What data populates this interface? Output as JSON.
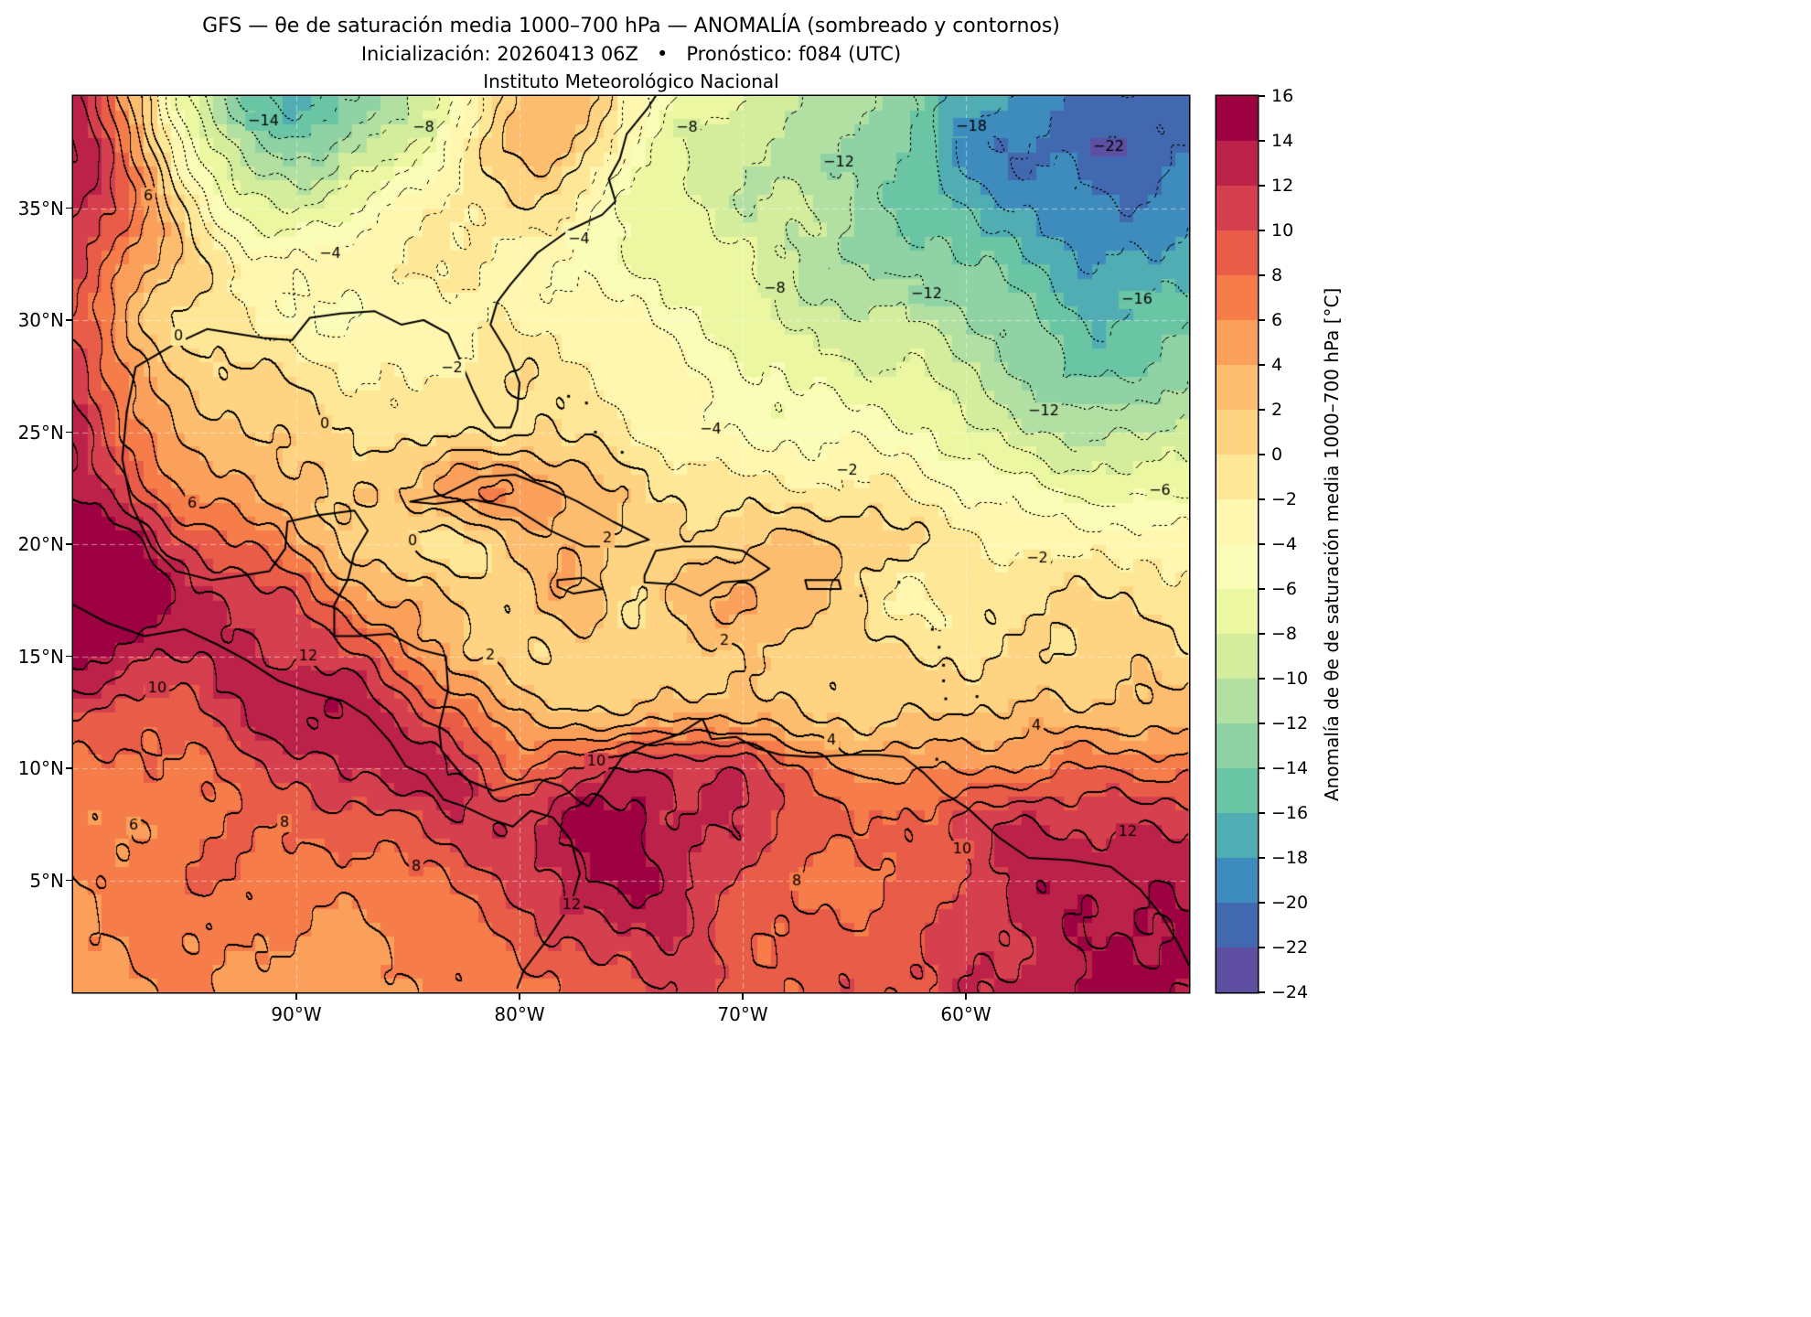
{
  "figure": {
    "title_line1": "GFS — θe de saturación media 1000–700 hPa — ANOMALÍA (sombreado y contornos)",
    "title_line2": "Inicialización: 20260413 06Z   •   Pronóstico: f084 (UTC)",
    "title_line3": "Instituto Meteorológico Nacional",
    "background": "#ffffff"
  },
  "axes": {
    "lon_min": -100,
    "lon_max": -50,
    "lat_min": 0,
    "lat_max": 40,
    "x_ticks": [
      {
        "lon": -90,
        "label": "90°W"
      },
      {
        "lon": -80,
        "label": "80°W"
      },
      {
        "lon": -70,
        "label": "70°W"
      },
      {
        "lon": -60,
        "label": "60°W"
      }
    ],
    "y_ticks": [
      {
        "lat": 35,
        "label": "35°N"
      },
      {
        "lat": 30,
        "label": "30°N"
      },
      {
        "lat": 25,
        "label": "25°N"
      },
      {
        "lat": 20,
        "label": "20°N"
      },
      {
        "lat": 15,
        "label": "15°N"
      },
      {
        "lat": 10,
        "label": "10°N"
      },
      {
        "lat": 5,
        "label": "5°N"
      }
    ],
    "grid_lons": [
      -90,
      -80,
      -70,
      -60
    ],
    "grid_lats": [
      5,
      10,
      15,
      20,
      25,
      30,
      35
    ]
  },
  "colorbar": {
    "label": "Anomalía de θe de saturación media 1000–700 hPa [°C]",
    "tick_labels": [
      "16",
      "14",
      "12",
      "10",
      "8",
      "6",
      "4",
      "2",
      "0",
      "−2",
      "−4",
      "−6",
      "−8",
      "−10",
      "−12",
      "−14",
      "−16",
      "−18",
      "−20",
      "−22",
      "−24"
    ],
    "level_min": -24,
    "level_max": 16,
    "level_step": 2,
    "colors_ascending": [
      "#5e4fa2",
      "#4268b0",
      "#3e8bbd",
      "#4fadb3",
      "#69c5a4",
      "#8fd2a4",
      "#b2dfa2",
      "#d3ed9c",
      "#ecf7a1",
      "#fafdb7",
      "#fff7b0",
      "#fee797",
      "#fed482",
      "#fdbd6e",
      "#fba05b",
      "#f67c4a",
      "#e95c47",
      "#d6404e",
      "#bc2249",
      "#9e0142"
    ]
  },
  "chart_data": {
    "type": "heatmap",
    "subtype": "filled-contour-anomaly-map",
    "units": "°C",
    "contour_interval": 2,
    "positive_contours": "solid",
    "negative_contours": "dotted",
    "contour_label_levels": [
      -22,
      -20,
      -18,
      -16,
      -14,
      -12,
      -10,
      -8,
      -6,
      -4,
      -2,
      0,
      2,
      4,
      6,
      8,
      10,
      12
    ],
    "x_lons": [
      -100,
      -97.5,
      -95,
      -92.5,
      -90,
      -87.5,
      -85,
      -82.5,
      -80,
      -77.5,
      -75,
      -72.5,
      -70,
      -67.5,
      -65,
      -62.5,
      -60,
      -57.5,
      -55,
      -52.5,
      -50
    ],
    "y_lats": [
      40,
      37.5,
      35,
      32.5,
      30,
      27.5,
      25,
      22.5,
      20,
      17.5,
      15,
      12.5,
      10,
      7.5,
      5,
      2.5,
      0
    ],
    "values_grid": [
      [
        12,
        4,
        -8,
        -14,
        -16,
        -14,
        -10,
        -6,
        2,
        3,
        -2,
        -6,
        -8,
        -10,
        -12,
        -14,
        -16,
        -18,
        -20,
        -21,
        -22
      ],
      [
        14,
        6,
        -4,
        -10,
        -12,
        -10,
        -8,
        -2,
        2,
        2,
        -4,
        -8,
        -10,
        -12,
        -12,
        -14,
        -18,
        -20,
        -21,
        -22,
        -20
      ],
      [
        12,
        8,
        0,
        -6,
        -8,
        -6,
        -4,
        -2,
        0,
        -2,
        -6,
        -8,
        -10,
        -10,
        -12,
        -14,
        -16,
        -18,
        -20,
        -20,
        -18
      ],
      [
        10,
        6,
        2,
        -2,
        -4,
        -4,
        -2,
        -2,
        -2,
        -4,
        -6,
        -8,
        -8,
        -10,
        -12,
        -12,
        -14,
        -16,
        -18,
        -18,
        -16
      ],
      [
        10,
        4,
        0,
        -2,
        -4,
        -5,
        -3,
        -2,
        -2,
        -3,
        -4,
        -6,
        -7,
        -8,
        -9,
        -10,
        -12,
        -14,
        -16,
        -15,
        -14
      ],
      [
        12,
        6,
        2,
        0,
        -1,
        -2,
        -2,
        -1,
        0,
        -2,
        -3,
        -4,
        -5,
        -6,
        -7,
        -8,
        -10,
        -12,
        -14,
        -13,
        -12
      ],
      [
        14,
        8,
        3,
        2,
        1,
        0,
        0,
        0,
        0,
        -1,
        -2,
        -3,
        -4,
        -4,
        -5,
        -6,
        -8,
        -9,
        -10,
        -10,
        -9
      ],
      [
        14,
        10,
        5,
        4,
        3,
        2,
        3,
        5,
        5,
        3,
        1,
        0,
        -1,
        -2,
        -2,
        -3,
        -4,
        -5,
        -6,
        -7,
        -7
      ],
      [
        16,
        14,
        10,
        8,
        6,
        2,
        0,
        -1,
        2,
        4,
        2,
        1,
        2,
        2,
        1,
        0,
        -1,
        -2,
        -3,
        -3,
        -4
      ],
      [
        16,
        15,
        13,
        12,
        10,
        6,
        3,
        1,
        1,
        4,
        1,
        3,
        4,
        3,
        0,
        -2,
        -1,
        0,
        0,
        -1,
        -1
      ],
      [
        14,
        13,
        12,
        13,
        12,
        10,
        6,
        2,
        1,
        1,
        1,
        1,
        1,
        1,
        1,
        1,
        0,
        0,
        0,
        1,
        1
      ],
      [
        10,
        9,
        10,
        12,
        14,
        13,
        10,
        8,
        4,
        3,
        2,
        3,
        3,
        2,
        2,
        2,
        2,
        2,
        2,
        3,
        3
      ],
      [
        8,
        8,
        8,
        9,
        10,
        12,
        13,
        12,
        8,
        10,
        12,
        10,
        12,
        8,
        6,
        6,
        5,
        6,
        8,
        8,
        8
      ],
      [
        7,
        7,
        7,
        8,
        8,
        9,
        10,
        12,
        12,
        14,
        14,
        12,
        12,
        10,
        8,
        8,
        10,
        12,
        12,
        12,
        12
      ],
      [
        6,
        7,
        8,
        7,
        7,
        7,
        8,
        9,
        10,
        13,
        14,
        13,
        10,
        8,
        7,
        8,
        10,
        13,
        14,
        14,
        13
      ],
      [
        6,
        6,
        6,
        6,
        6,
        6,
        7,
        7,
        8,
        10,
        12,
        12,
        9,
        8,
        8,
        9,
        11,
        13,
        14,
        14,
        14
      ],
      [
        5,
        5,
        6,
        6,
        5,
        6,
        6,
        7,
        7,
        8,
        10,
        11,
        9,
        8,
        9,
        10,
        12,
        13,
        14,
        14,
        14
      ]
    ],
    "geo": {
      "coastlines": [
        {
          "name": "us-gulf-atlantic",
          "pts": [
            [
              -97.6,
              25.9
            ],
            [
              -97.2,
              27.9
            ],
            [
              -95.5,
              28.9
            ],
            [
              -94,
              29.6
            ],
            [
              -91.5,
              29.2
            ],
            [
              -90.2,
              29.1
            ],
            [
              -89.4,
              30.1
            ],
            [
              -88,
              30.3
            ],
            [
              -86.5,
              30.4
            ],
            [
              -85.3,
              29.8
            ],
            [
              -84.3,
              30
            ],
            [
              -83.2,
              29.4
            ],
            [
              -82.7,
              28.3
            ],
            [
              -82.1,
              26.9
            ],
            [
              -81.6,
              25.9
            ],
            [
              -81.1,
              25.2
            ],
            [
              -80.4,
              25.2
            ],
            [
              -80.1,
              26
            ],
            [
              -80,
              27.2
            ],
            [
              -80.5,
              28.5
            ],
            [
              -81.3,
              29.8
            ],
            [
              -81,
              30.8
            ],
            [
              -80.4,
              31.6
            ],
            [
              -79.2,
              33
            ],
            [
              -77.8,
              34
            ],
            [
              -76.3,
              34.7
            ],
            [
              -75.7,
              35.3
            ],
            [
              -76,
              36.3
            ],
            [
              -75.5,
              37.2
            ],
            [
              -75.2,
              38.3
            ],
            [
              -74.3,
              39.4
            ],
            [
              -73.9,
              40
            ]
          ]
        },
        {
          "name": "mexico-central-america-caribbean",
          "pts": [
            [
              -97.6,
              25.9
            ],
            [
              -97.8,
              23.8
            ],
            [
              -97.4,
              21.8
            ],
            [
              -96.5,
              19.9
            ],
            [
              -95.4,
              18.8
            ],
            [
              -93.8,
              18.4
            ],
            [
              -92.4,
              18.6
            ],
            [
              -91.2,
              18.8
            ],
            [
              -90.5,
              19.8
            ],
            [
              -90.4,
              21
            ],
            [
              -89,
              21.3
            ],
            [
              -87.4,
              21.5
            ],
            [
              -86.8,
              20.6
            ],
            [
              -87.4,
              19.6
            ],
            [
              -87.7,
              18.4
            ],
            [
              -88.3,
              17.3
            ],
            [
              -88.3,
              15.9
            ],
            [
              -87.2,
              15.9
            ],
            [
              -85.8,
              16
            ],
            [
              -84.5,
              15.3
            ],
            [
              -83.3,
              15
            ],
            [
              -83.2,
              13.5
            ],
            [
              -83.6,
              11.8
            ],
            [
              -83.5,
              10.8
            ],
            [
              -82.4,
              9.5
            ],
            [
              -81.2,
              9
            ],
            [
              -80.1,
              9.3
            ],
            [
              -79.1,
              9.5
            ],
            [
              -78.1,
              9.2
            ],
            [
              -77.3,
              8.5
            ],
            [
              -76.9,
              8.3
            ],
            [
              -76.2,
              9.3
            ],
            [
              -75.4,
              10.5
            ],
            [
              -74.4,
              11
            ],
            [
              -72.9,
              11.5
            ],
            [
              -71.8,
              12.2
            ],
            [
              -71.4,
              11.3
            ],
            [
              -70.3,
              11.4
            ],
            [
              -69.4,
              10.9
            ],
            [
              -68.3,
              10.6
            ],
            [
              -66.8,
              10.5
            ],
            [
              -65.2,
              10.6
            ],
            [
              -63.9,
              10.6
            ],
            [
              -62.8,
              10.5
            ],
            [
              -61.9,
              9.8
            ],
            [
              -61,
              8.9
            ],
            [
              -59.9,
              8.2
            ],
            [
              -58.5,
              6.9
            ],
            [
              -57.2,
              6
            ],
            [
              -55.3,
              5.9
            ],
            [
              -53.5,
              5.6
            ],
            [
              -52.2,
              4.6
            ],
            [
              -51.2,
              3.4
            ],
            [
              -50.5,
              2.2
            ],
            [
              -50,
              1.2
            ]
          ]
        },
        {
          "name": "pacific-coast",
          "pts": [
            [
              -100,
              17.3
            ],
            [
              -98.5,
              16.5
            ],
            [
              -96.8,
              15.9
            ],
            [
              -95,
              16.2
            ],
            [
              -93.5,
              15.5
            ],
            [
              -92.2,
              14.8
            ],
            [
              -90.8,
              13.9
            ],
            [
              -89.4,
              13.4
            ],
            [
              -87.9,
              13
            ],
            [
              -86.8,
              12.3
            ],
            [
              -85.8,
              11.2
            ],
            [
              -85.1,
              10.1
            ],
            [
              -84.2,
              9.7
            ],
            [
              -83.4,
              8.6
            ],
            [
              -82.5,
              8.3
            ],
            [
              -81.2,
              7.7
            ],
            [
              -80.3,
              7.4
            ],
            [
              -79.5,
              8.1
            ],
            [
              -78.5,
              7.8
            ],
            [
              -77.7,
              6.8
            ],
            [
              -77.3,
              5.3
            ],
            [
              -77.7,
              3.9
            ],
            [
              -78.8,
              2.3
            ],
            [
              -79.8,
              1
            ],
            [
              -80.1,
              0.2
            ]
          ]
        },
        {
          "name": "cuba",
          "pts": [
            [
              -84.9,
              21.9
            ],
            [
              -83.4,
              22.2
            ],
            [
              -81.8,
              23
            ],
            [
              -80.2,
              23.1
            ],
            [
              -78.9,
              22.6
            ],
            [
              -77.4,
              21.9
            ],
            [
              -75.8,
              21
            ],
            [
              -74.2,
              20.2
            ],
            [
              -75.2,
              19.9
            ],
            [
              -77.1,
              19.9
            ],
            [
              -78.6,
              20.6
            ],
            [
              -80.2,
              21.6
            ],
            [
              -82.1,
              22
            ],
            [
              -83.8,
              21.8
            ],
            [
              -84.9,
              21.9
            ]
          ]
        },
        {
          "name": "hispaniola",
          "pts": [
            [
              -74.4,
              18.6
            ],
            [
              -73.9,
              19.7
            ],
            [
              -72.7,
              19.9
            ],
            [
              -71.3,
              19.9
            ],
            [
              -70,
              19.7
            ],
            [
              -68.8,
              18.9
            ],
            [
              -69.6,
              18.4
            ],
            [
              -70.9,
              18.3
            ],
            [
              -71.9,
              17.7
            ],
            [
              -73,
              18.2
            ],
            [
              -74.4,
              18.3
            ],
            [
              -74.4,
              18.6
            ]
          ]
        },
        {
          "name": "jamaica",
          "pts": [
            [
              -78.3,
              18.4
            ],
            [
              -77.1,
              18.5
            ],
            [
              -76.3,
              18
            ],
            [
              -77.6,
              17.8
            ],
            [
              -78.3,
              18.1
            ],
            [
              -78.3,
              18.4
            ]
          ]
        },
        {
          "name": "puerto-rico",
          "pts": [
            [
              -67.2,
              18.4
            ],
            [
              -65.7,
              18.4
            ],
            [
              -65.6,
              18
            ],
            [
              -67.1,
              18
            ],
            [
              -67.2,
              18.4
            ]
          ]
        }
      ],
      "island_dots": [
        [
          -77.8,
          26.6
        ],
        [
          -77,
          26.3
        ],
        [
          -76.6,
          25
        ],
        [
          -75.4,
          24.1
        ],
        [
          -63,
          18.3
        ],
        [
          -64.7,
          17.7
        ],
        [
          -61.5,
          16.2
        ],
        [
          -61.2,
          15.4
        ],
        [
          -61,
          14.6
        ],
        [
          -61,
          13.9
        ],
        [
          -60.9,
          13.1
        ],
        [
          -59.5,
          13.2
        ],
        [
          -61.3,
          10.4
        ]
      ]
    }
  }
}
